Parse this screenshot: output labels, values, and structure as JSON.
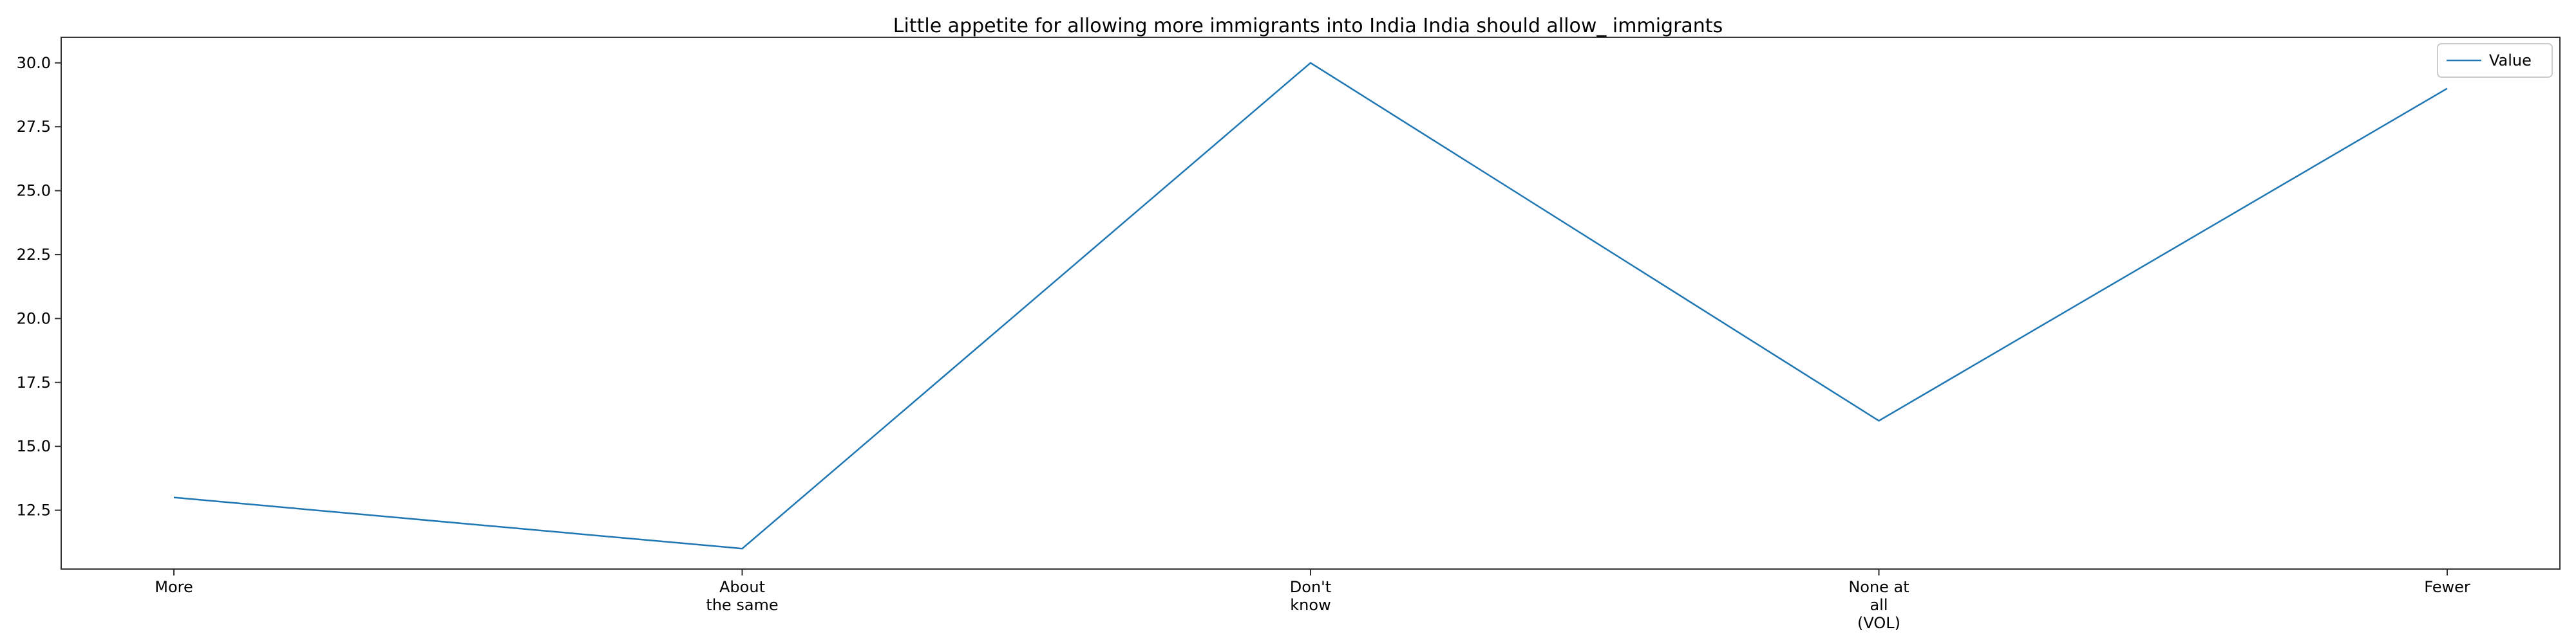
{
  "chart_data": {
    "type": "line",
    "title": "Little appetite for allowing more immigrants into India India should allow_ immigrants",
    "xlabel": "",
    "ylabel": "",
    "categories": [
      [
        "More"
      ],
      [
        "About",
        "the same"
      ],
      [
        "Don't",
        "know"
      ],
      [
        "None at",
        "all",
        "(VOL)"
      ],
      [
        "Fewer"
      ]
    ],
    "series": [
      {
        "name": "Value",
        "values": [
          13,
          11,
          30,
          16,
          29
        ],
        "color": "#1f77b4"
      }
    ],
    "ylim": [
      10.2,
      31.0
    ],
    "yticks": [
      "12.5",
      "15.0",
      "17.5",
      "20.0",
      "22.5",
      "25.0",
      "27.5",
      "30.0"
    ],
    "grid": false,
    "legend_position": "top-right"
  }
}
